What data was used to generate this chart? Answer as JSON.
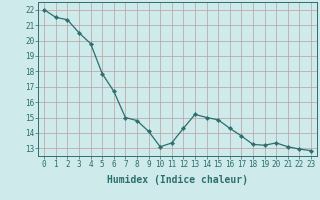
{
  "x": [
    0,
    1,
    2,
    3,
    4,
    5,
    6,
    7,
    8,
    9,
    10,
    11,
    12,
    13,
    14,
    15,
    16,
    17,
    18,
    19,
    20,
    21,
    22,
    23
  ],
  "y": [
    22.0,
    21.5,
    21.35,
    20.5,
    19.8,
    17.85,
    16.7,
    15.0,
    14.8,
    14.1,
    13.1,
    13.35,
    14.3,
    15.2,
    15.0,
    14.85,
    14.3,
    13.8,
    13.25,
    13.2,
    13.35,
    13.1,
    12.95,
    12.85
  ],
  "line_color": "#2d6e6e",
  "marker": "D",
  "markersize": 2.2,
  "background_color": "#ceeaea",
  "grid_color": "#b8a0a0",
  "axis_color": "#2d6e6e",
  "xlabel": "Humidex (Indice chaleur)",
  "xlim": [
    -0.5,
    23.5
  ],
  "ylim": [
    12.5,
    22.5
  ],
  "yticks": [
    13,
    14,
    15,
    16,
    17,
    18,
    19,
    20,
    21,
    22
  ],
  "xticks": [
    0,
    1,
    2,
    3,
    4,
    5,
    6,
    7,
    8,
    9,
    10,
    11,
    12,
    13,
    14,
    15,
    16,
    17,
    18,
    19,
    20,
    21,
    22,
    23
  ],
  "tick_fontsize": 5.5,
  "xlabel_fontsize": 7.0,
  "linewidth": 0.9
}
